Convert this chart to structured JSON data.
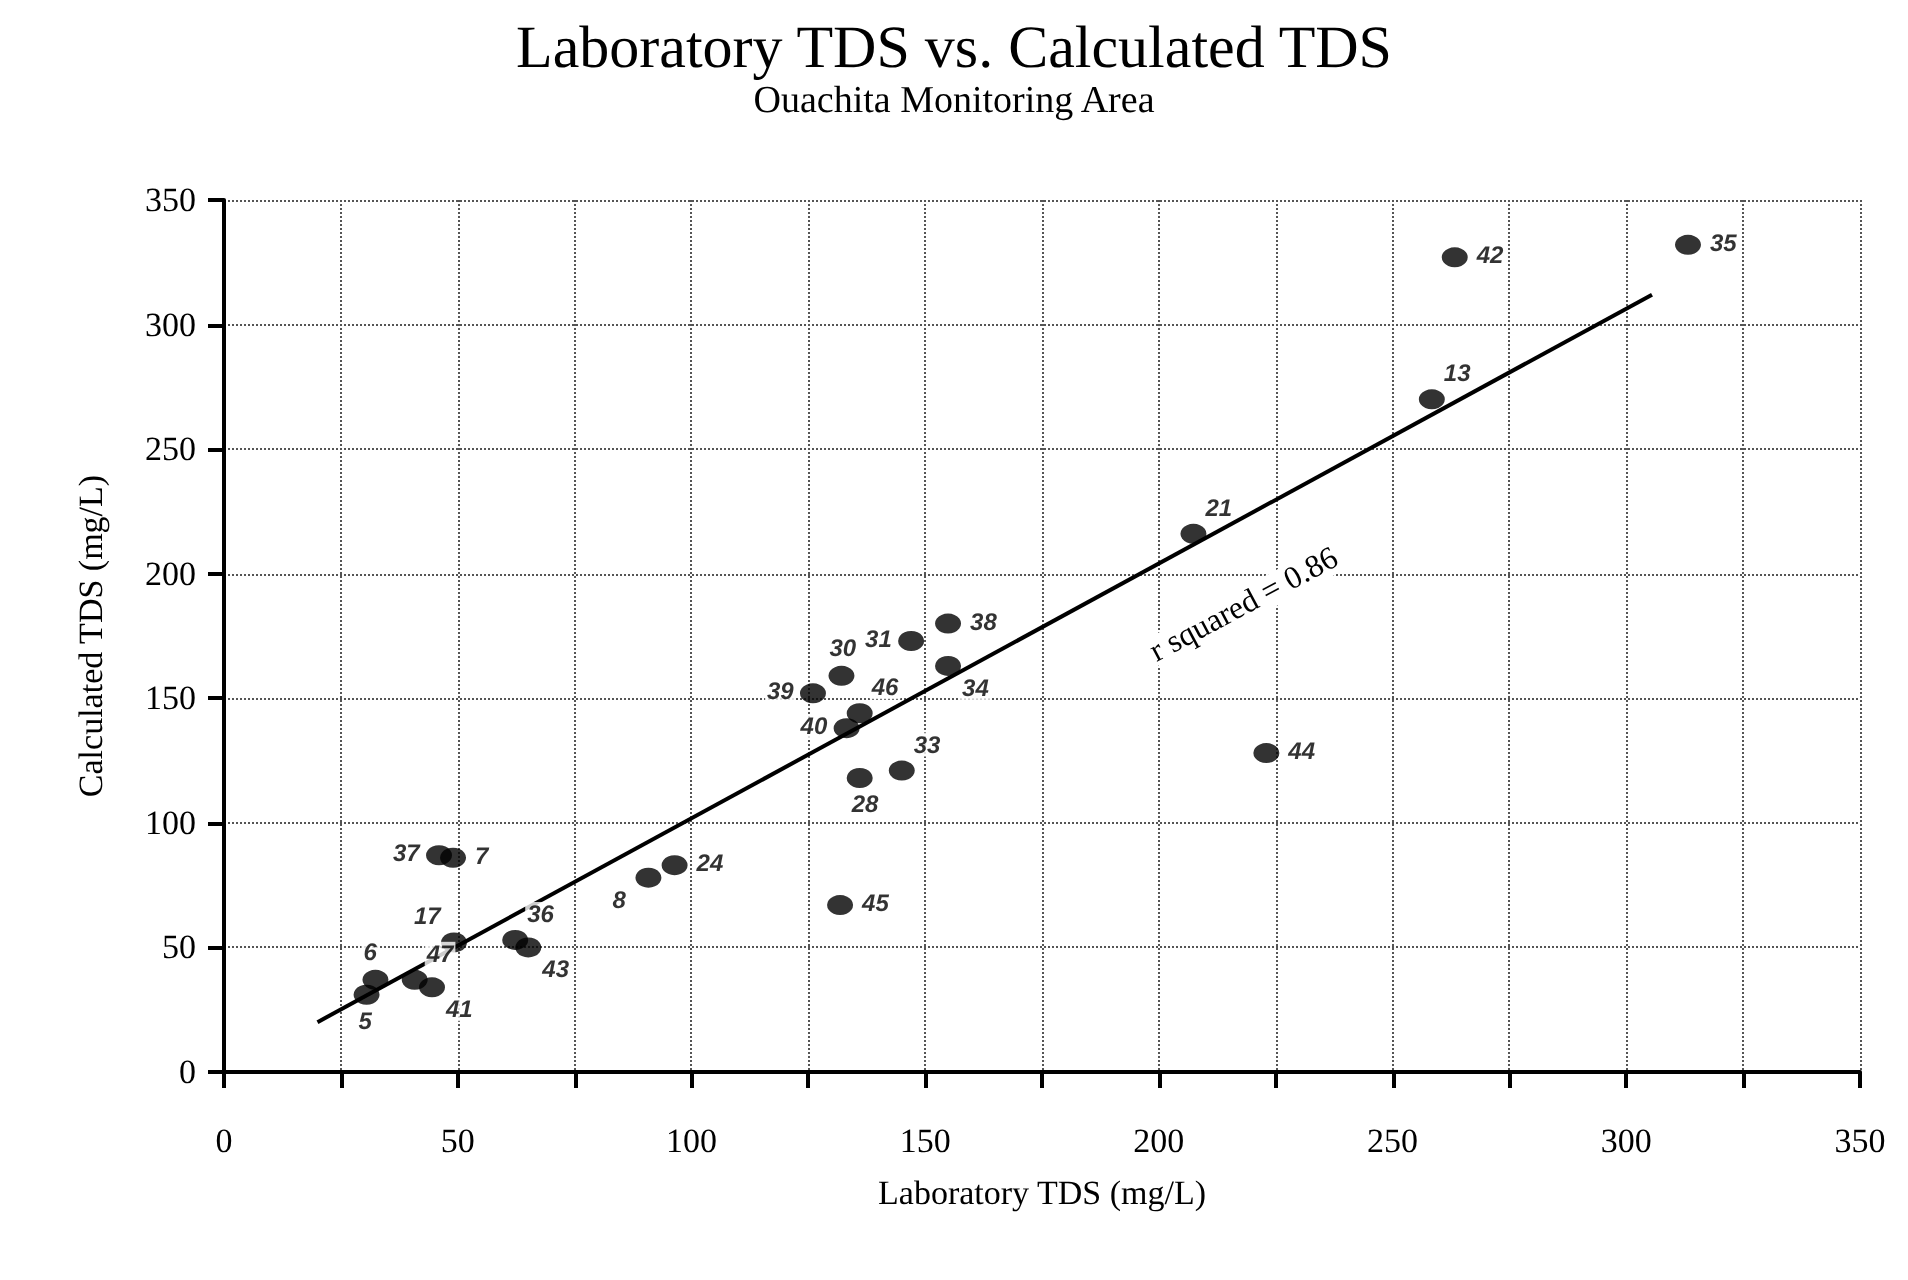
{
  "chart_data": {
    "type": "scatter",
    "title": "Laboratory TDS vs. Calculated TDS",
    "subtitle": "Ouachita Monitoring Area",
    "xlabel": "Laboratory TDS (mg/L)",
    "ylabel": "Calculated TDS (mg/L)",
    "series": [
      {
        "color": "#000000",
        "marker": "circle",
        "x": [
          46,
          49,
          96.4,
          90.8,
          49.2,
          62.3,
          65.1,
          32.4,
          30.5,
          40.8,
          44.5,
          154.9,
          147,
          132.1,
          126,
          154.9,
          136,
          133.2,
          145,
          136,
          223,
          131.8,
          263.3,
          313.2,
          258.4,
          207.4
        ],
        "values": [
          87,
          86,
          83,
          78,
          52,
          53,
          50,
          37,
          31,
          37,
          34,
          180,
          173,
          159,
          152,
          163,
          144,
          138,
          121,
          118,
          128,
          67,
          327,
          332,
          270,
          216
        ]
      },
      {
        "type": "line",
        "color": "#000000",
        "marker": "none",
        "line_style": "solid",
        "x": [
          20,
          305.5
        ],
        "values": [
          20,
          312
        ]
      }
    ],
    "annotations": [
      {
        "text": "37",
        "x": 46,
        "y": 87
      },
      {
        "text": "7",
        "x": 49,
        "y": 86
      },
      {
        "text": "24",
        "x": 96.4,
        "y": 83
      },
      {
        "text": "8",
        "x": 90.8,
        "y": 78
      },
      {
        "text": "17",
        "x": 49.2,
        "y": 52
      },
      {
        "text": "36",
        "x": 62.3,
        "y": 53
      },
      {
        "text": "43",
        "x": 65.1,
        "y": 50
      },
      {
        "text": "6",
        "x": 32.4,
        "y": 37
      },
      {
        "text": "5",
        "x": 30.5,
        "y": 31
      },
      {
        "text": "47",
        "x": 40.8,
        "y": 37
      },
      {
        "text": "41",
        "x": 44.5,
        "y": 34
      },
      {
        "text": "38",
        "x": 154.9,
        "y": 180
      },
      {
        "text": "31",
        "x": 147,
        "y": 173
      },
      {
        "text": "30",
        "x": 132.1,
        "y": 159
      },
      {
        "text": "39",
        "x": 126,
        "y": 152
      },
      {
        "text": "34",
        "x": 154.9,
        "y": 163
      },
      {
        "text": "46",
        "x": 136,
        "y": 144
      },
      {
        "text": "40",
        "x": 133.2,
        "y": 138
      },
      {
        "text": "33",
        "x": 145,
        "y": 121
      },
      {
        "text": "28",
        "x": 136,
        "y": 118
      },
      {
        "text": "44",
        "x": 223,
        "y": 128
      },
      {
        "text": "45",
        "x": 131.8,
        "y": 67
      },
      {
        "text": "42",
        "x": 263.3,
        "y": 327
      },
      {
        "text": "35",
        "x": 313.2,
        "y": 332
      },
      {
        "text": "13",
        "x": 258.4,
        "y": 270
      },
      {
        "text": "21",
        "x": 207.4,
        "y": 216
      },
      "r squared = 0.86"
    ],
    "xlim": [
      0,
      350
    ],
    "ylim": [
      0,
      350
    ],
    "xticks": [
      0,
      {
        "value": 25,
        "label": null
      },
      50,
      {
        "value": 75,
        "label": null
      },
      100,
      {
        "value": 125,
        "label": null
      },
      150,
      {
        "value": 175,
        "label": null
      },
      200,
      {
        "value": 225,
        "label": null
      },
      250,
      {
        "value": 275,
        "label": null
      },
      300,
      {
        "value": 325,
        "label": null
      },
      350
    ],
    "yticks": [
      0,
      50,
      100,
      150,
      200,
      250,
      300,
      350
    ],
    "grid": true
  }
}
